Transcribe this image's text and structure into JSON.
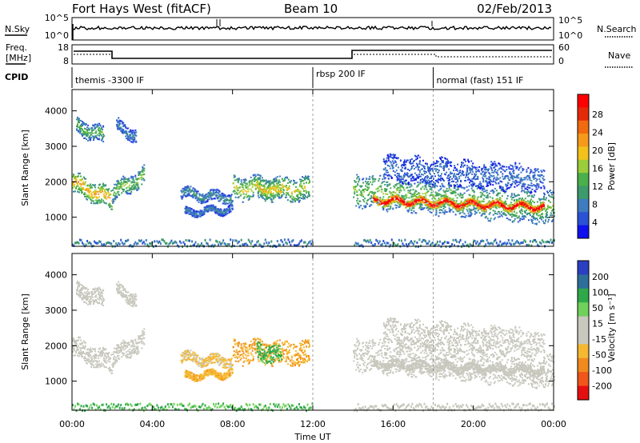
{
  "header": {
    "title": "Fort Hays West (fitACF)",
    "beam": "Beam 10",
    "date": "02/Feb/2013"
  },
  "nsky_panel": {
    "left_label": "N.Sky",
    "right_label": "N.Search",
    "left_ticks": [
      "10^5",
      "10^0"
    ],
    "right_ticks": [
      "10^5",
      "10^0"
    ]
  },
  "freq_panel": {
    "left_label_1": "Freq.",
    "left_label_2": "[MHz]",
    "right_label": "Nave",
    "left_ticks": [
      "18",
      "8"
    ],
    "right_ticks": [
      "60",
      "0"
    ]
  },
  "cpid": {
    "label": "CPID",
    "segments": [
      {
        "name": "themis -3300 IF",
        "start_h": 0,
        "end_h": 12
      },
      {
        "name": "rbsp 200 IF",
        "start_h": 12,
        "end_h": 18
      },
      {
        "name": "normal (fast) 151 IF",
        "start_h": 18,
        "end_h": 24
      }
    ]
  },
  "power_panel": {
    "ylabel": "Slant Range [km]",
    "cbar_label": "Power [dB]",
    "cbar_ticks": [
      "28",
      "24",
      "20",
      "16",
      "12",
      "8",
      "4"
    ]
  },
  "velocity_panel": {
    "ylabel": "Slant Range [km]",
    "cbar_label": "Velocity [m s⁻¹]",
    "cbar_ticks": [
      "200",
      "100",
      "50",
      "15",
      "-15",
      "-50",
      "-100",
      "-200"
    ]
  },
  "colors": {
    "power_scale": [
      "#1010ee",
      "#2a52d6",
      "#3e7bbf",
      "#3d9a6b",
      "#49b04a",
      "#9ccc3a",
      "#f2c21a",
      "#f59a1a",
      "#f26a10",
      "#e52a0a",
      "#ff0000"
    ],
    "velocity_scale": [
      "#e60f0f",
      "#f0551a",
      "#f08a1e",
      "#f5b830",
      "#c8c8be",
      "#c8c8be",
      "#6fd15a",
      "#2fa84a",
      "#2e6f9a",
      "#2b3fc2"
    ],
    "ground_scatter": "#c8c8be"
  },
  "chart_data": {
    "type": "heatmap",
    "x_axis": {
      "label": "Time UT",
      "ticks": [
        "00:00",
        "04:00",
        "08:00",
        "12:00",
        "16:00",
        "20:00",
        "00:00"
      ],
      "range_h": [
        0,
        24
      ]
    },
    "y_axis": {
      "label": "Slant Range [km]",
      "ticks": [
        1000,
        2000,
        3000,
        4000
      ],
      "range_km": [
        180,
        4600
      ]
    },
    "panels": [
      "Power [dB]",
      "Velocity [m s⁻¹]"
    ],
    "power_range_db": [
      0,
      30
    ],
    "velocity_range": [
      -250,
      250
    ],
    "dashed_markers_h": [
      12,
      18
    ],
    "scatter_regions": [
      {
        "t": [
          0.0,
          2.0
        ],
        "r": [
          2000,
          1500
        ],
        "w": 550,
        "power": 16,
        "velocity": 0
      },
      {
        "t": [
          0.2,
          1.6
        ],
        "r": [
          3600,
          3300
        ],
        "w": 450,
        "power": 10,
        "velocity": 0
      },
      {
        "t": [
          2.0,
          3.6
        ],
        "r": [
          1700,
          2200
        ],
        "w": 500,
        "power": 11,
        "velocity": 0
      },
      {
        "t": [
          2.2,
          3.2
        ],
        "r": [
          3600,
          3300
        ],
        "w": 350,
        "power": 6,
        "velocity": 0
      },
      {
        "t": [
          5.4,
          8.0
        ],
        "r": [
          1700,
          1550
        ],
        "w": 300,
        "power": 7,
        "velocity": -60
      },
      {
        "t": [
          5.6,
          8.0
        ],
        "r": [
          1150,
          1250
        ],
        "w": 200,
        "power": 6,
        "velocity": -80
      },
      {
        "t": [
          8.0,
          11.8
        ],
        "r": [
          1850,
          1800
        ],
        "w": 650,
        "power": 13,
        "velocity": -90
      },
      {
        "t": [
          9.2,
          10.4
        ],
        "r": [
          1900,
          1700
        ],
        "w": 500,
        "power": 15,
        "velocity": 120
      },
      {
        "t": [
          14.0,
          24.0
        ],
        "r": [
          1800,
          1250
        ],
        "w": 900,
        "power": 11,
        "velocity": 0
      },
      {
        "t": [
          15.0,
          23.5
        ],
        "r": [
          1500,
          1300
        ],
        "w": 220,
        "power": 25,
        "velocity": 0
      },
      {
        "t": [
          15.5,
          23.5
        ],
        "r": [
          2400,
          2100
        ],
        "w": 700,
        "power": 5,
        "velocity": 0
      }
    ],
    "near_range_band_km": [
      200,
      400
    ]
  }
}
